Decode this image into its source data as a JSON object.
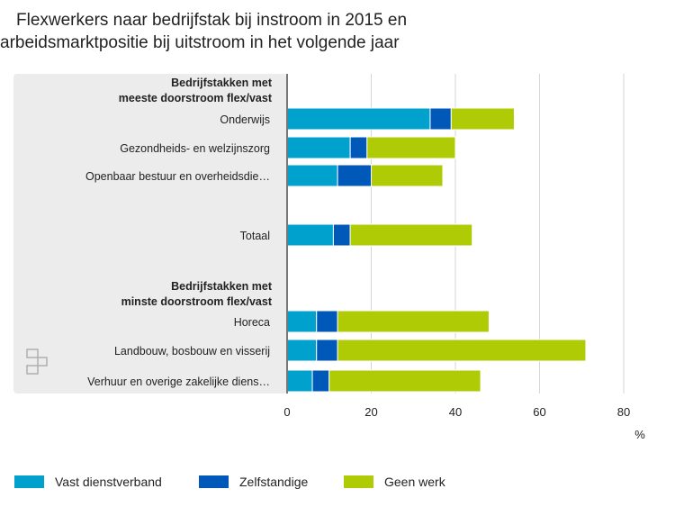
{
  "chart_data": {
    "type": "bar",
    "orientation": "horizontal",
    "stacked": true,
    "title_lines": [
      "Flexwerkers naar bedrijfstak bij instroom in 2015 en",
      "arbeidsmarktpositie bij uitstroom in het volgende jaar"
    ],
    "group_headers": [
      [
        "Bedrijfstakken met",
        "meeste doorstroom flex/vast"
      ],
      [
        "Bedrijfstakken met",
        "minste doorstroom flex/vast"
      ]
    ],
    "categories": [
      "Onderwijs",
      "Gezondheids- en welzijnszorg",
      "Openbaar bestuur en overheidsdie…",
      "Totaal",
      "Horeca",
      "Landbouw, bosbouw en visserij",
      "Verhuur en overige zakelijke diens…"
    ],
    "series": [
      {
        "name": "Vast dienstverband",
        "color": "#00a1cd",
        "values": [
          34,
          15,
          12,
          11,
          7,
          7,
          6
        ]
      },
      {
        "name": "Zelfstandige",
        "color": "#0058b8",
        "values": [
          5,
          4,
          8,
          4,
          5,
          5,
          4
        ]
      },
      {
        "name": "Geen werk",
        "color": "#afcb05",
        "values": [
          15,
          21,
          17,
          29,
          36,
          59,
          36
        ]
      }
    ],
    "xlim": [
      0,
      80
    ],
    "xticks": [
      "0",
      "20",
      "40",
      "60",
      "80"
    ],
    "xlabel": "%",
    "grid": true,
    "legend_position": "bottom"
  }
}
